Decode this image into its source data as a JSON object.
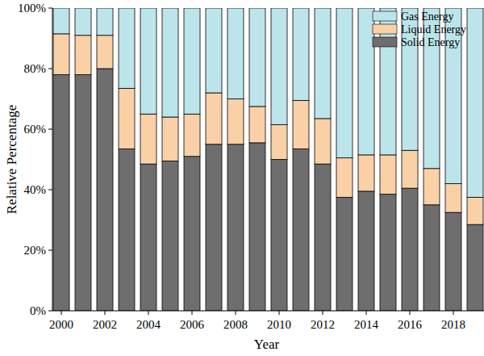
{
  "chart_data": {
    "type": "bar",
    "stacked": true,
    "legend": "upper right",
    "x_label": "Year",
    "y_label": "Relative Percentage",
    "categories": [
      "2000",
      null,
      "2002",
      null,
      "2004",
      null,
      "2006",
      null,
      "2008",
      null,
      "2010",
      null,
      "2012",
      null,
      "2014",
      null,
      "2016",
      null,
      "2018",
      null
    ],
    "series": [
      {
        "name": "Solid Energy",
        "color": "#6e6e6e",
        "values": [
          78,
          78,
          80,
          53.5,
          48.5,
          49.5,
          51,
          55,
          55,
          55.5,
          50,
          53.5,
          48.5,
          37.5,
          39.5,
          38.5,
          40.5,
          35,
          32.5,
          28.5
        ]
      },
      {
        "name": "Liquid Energy",
        "color": "#fad0a6",
        "values": [
          13.5,
          13,
          11,
          20,
          16.5,
          14.5,
          14,
          17,
          15,
          12,
          11.5,
          16,
          15,
          13,
          12,
          13,
          12.5,
          12,
          9.5,
          9
        ]
      },
      {
        "name": "Gas Energy",
        "color": "#bce4eb",
        "values": [
          8.5,
          9,
          9,
          26.5,
          35,
          36,
          35,
          28,
          30,
          32.5,
          38.5,
          30.5,
          36.5,
          49.5,
          48.5,
          48.5,
          47,
          53,
          58,
          62.5
        ]
      }
    ],
    "ylim": [
      0,
      100
    ],
    "yticks": [
      {
        "value": 0,
        "label": "0%"
      },
      {
        "value": 20,
        "label": "20%"
      },
      {
        "value": 40,
        "label": "40%"
      },
      {
        "value": 60,
        "label": "60%"
      },
      {
        "value": 80,
        "label": "80%"
      },
      {
        "value": 100,
        "label": "100%"
      }
    ]
  }
}
